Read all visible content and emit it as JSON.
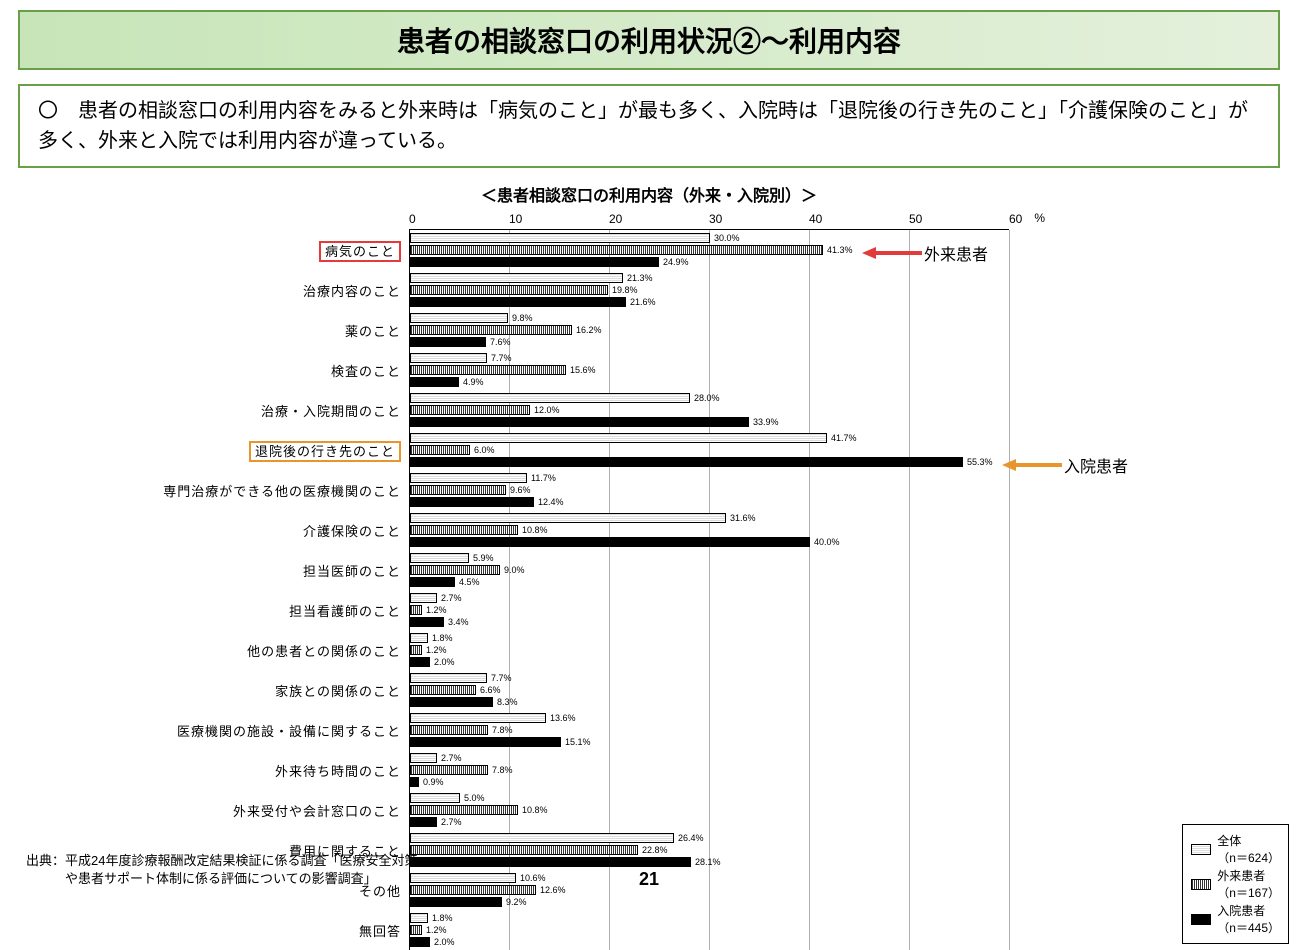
{
  "title": "患者の相談窓口の利用状況②～利用内容",
  "summary": "〇　患者の相談窓口の利用内容をみると外来時は「病気のこと」が最も多く、入院時は「退院後の行き先のこと」「介護保険のこと」が多く、外来と入院では利用内容が違っている。",
  "chart": {
    "title": "＜患者相談窓口の利用内容（外来・入院別）＞",
    "type": "grouped-horizontal-bar",
    "x_max": 60,
    "x_tick_step": 10,
    "x_unit": "%",
    "series": [
      {
        "key": "total",
        "label": "全体",
        "sub": "（n＝624）",
        "pattern": "pattern-light"
      },
      {
        "key": "out",
        "label": "外来患者",
        "sub": "（n＝167）",
        "pattern": "pattern-hatch"
      },
      {
        "key": "in",
        "label": "入院患者",
        "sub": "（n＝445）",
        "pattern": "pattern-solid"
      }
    ],
    "categories": [
      {
        "label": "病気のこと",
        "highlight": "red",
        "values": {
          "total": 30.0,
          "out": 41.3,
          "in": 24.9
        }
      },
      {
        "label": "治療内容のこと",
        "values": {
          "total": 21.3,
          "out": 19.8,
          "in": 21.6
        }
      },
      {
        "label": "薬のこと",
        "values": {
          "total": 9.8,
          "out": 16.2,
          "in": 7.6
        }
      },
      {
        "label": "検査のこと",
        "values": {
          "total": 7.7,
          "out": 15.6,
          "in": 4.9
        }
      },
      {
        "label": "治療・入院期間のこと",
        "values": {
          "total": 28.0,
          "out": 12.0,
          "in": 33.9
        }
      },
      {
        "label": "退院後の行き先のこと",
        "highlight": "orange",
        "values": {
          "total": 41.7,
          "out": 6.0,
          "in": 55.3
        }
      },
      {
        "label": "専門治療ができる他の医療機関のこと",
        "values": {
          "total": 11.7,
          "out": 9.6,
          "in": 12.4
        }
      },
      {
        "label": "介護保険のこと",
        "values": {
          "total": 31.6,
          "out": 10.8,
          "in": 40.0
        }
      },
      {
        "label": "担当医師のこと",
        "values": {
          "total": 5.9,
          "out": 9.0,
          "in": 4.5
        }
      },
      {
        "label": "担当看護師のこと",
        "values": {
          "total": 2.7,
          "out": 1.2,
          "in": 3.4
        }
      },
      {
        "label": "他の患者との関係のこと",
        "values": {
          "total": 1.8,
          "out": 1.2,
          "in": 2.0
        }
      },
      {
        "label": "家族との関係のこと",
        "values": {
          "total": 7.7,
          "out": 6.6,
          "in": 8.3
        }
      },
      {
        "label": "医療機関の施設・設備に関すること",
        "values": {
          "total": 13.6,
          "out": 7.8,
          "in": 15.1
        }
      },
      {
        "label": "外来待ち時間のこと",
        "values": {
          "total": 2.7,
          "out": 7.8,
          "in": 0.9
        }
      },
      {
        "label": "外来受付や会計窓口のこと",
        "values": {
          "total": 5.0,
          "out": 10.8,
          "in": 2.7
        }
      },
      {
        "label": "費用に関すること",
        "values": {
          "total": 26.4,
          "out": 22.8,
          "in": 28.1
        }
      },
      {
        "label": "その他",
        "values": {
          "total": 10.6,
          "out": 12.6,
          "in": 9.2
        }
      },
      {
        "label": "無回答",
        "values": {
          "total": 1.8,
          "out": 1.2,
          "in": 2.0
        }
      }
    ],
    "callouts": [
      {
        "label": "外来患者",
        "color_class": "arrow-red",
        "target_cat": 0,
        "target_series": "out"
      },
      {
        "label": "入院患者",
        "color_class": "arrow-orange",
        "target_cat": 5,
        "target_series": "in"
      }
    ],
    "colors": {
      "highlight_red": "#e23b3b",
      "highlight_orange": "#e8952e",
      "grid": "#b0b0b0",
      "border": "#000000"
    }
  },
  "source": {
    "line1": "出典：平成24年度診療報酬改定結果検証に係る調査「医療安全対策",
    "line2": "　　　や患者サポート体制に係る評価についての影響調査」"
  },
  "page_number": "21"
}
